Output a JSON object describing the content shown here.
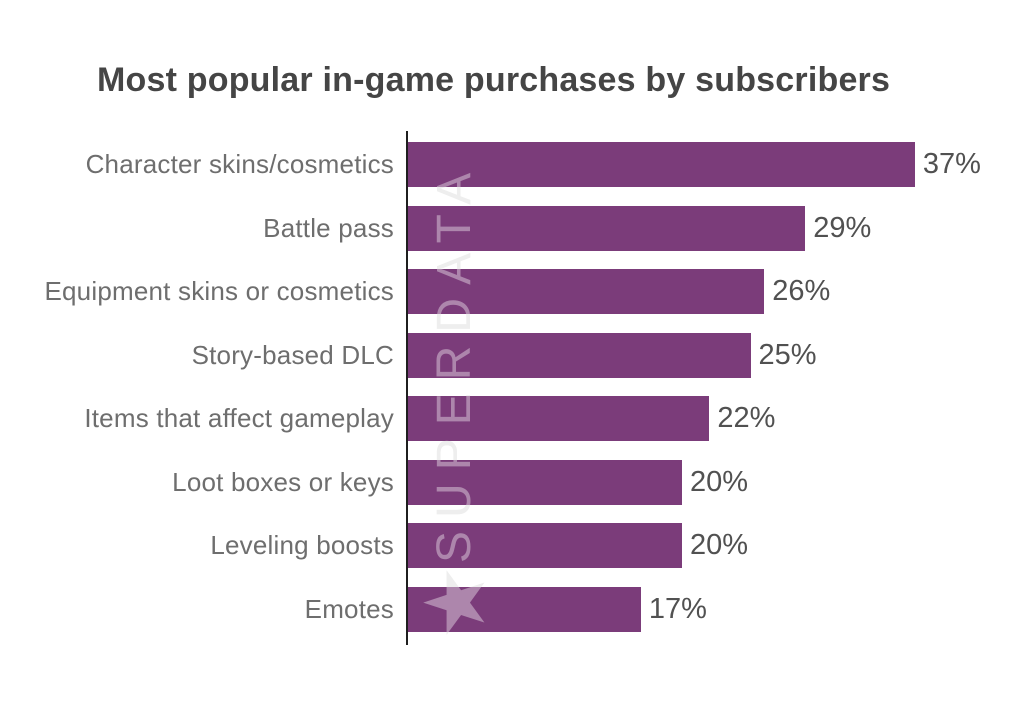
{
  "title": "Most popular in-game purchases by subscribers",
  "watermark": {
    "star_glyph": "★",
    "text": "SUPERDATA"
  },
  "colors": {
    "bar": "#7b3c7a",
    "axis": "#1f1f1f",
    "title_text": "#454545",
    "category_text": "#6e6e6e",
    "value_text": "#515151",
    "watermark_back": "#e4e4e4",
    "watermark_front": "rgba(255,255,255,0.38)"
  },
  "chart_data": {
    "type": "bar",
    "orientation": "horizontal",
    "title": "Most popular in-game purchases by subscribers",
    "categories": [
      "Character skins/cosmetics",
      "Battle pass",
      "Equipment skins or cosmetics",
      "Story-based DLC",
      "Items that affect gameplay",
      "Loot boxes or keys",
      "Leveling boosts",
      "Emotes"
    ],
    "values": [
      37,
      29,
      26,
      25,
      22,
      20,
      20,
      17
    ],
    "value_suffix": "%",
    "value_labels_shown": true,
    "xlim": [
      0,
      40
    ],
    "grid": false,
    "sort_order": "descending",
    "bars_start_at_axis": true
  }
}
